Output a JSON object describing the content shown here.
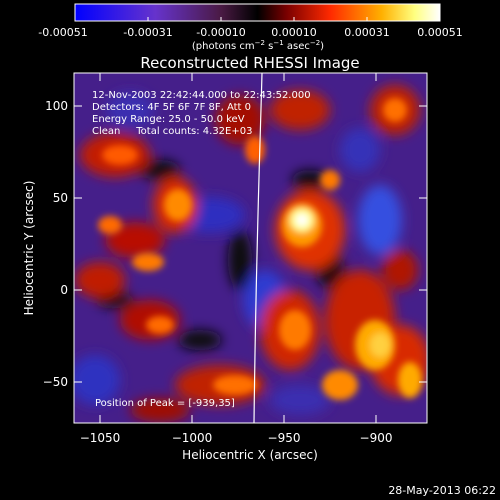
{
  "colorbar": {
    "ticks": [
      "-0.00051",
      "-0.00031",
      "-0.00010",
      "0.00010",
      "0.00031",
      "0.00051"
    ],
    "units_main": "(photons cm",
    "units_exp1": "−2",
    "units_mid": " s",
    "units_exp2": "−1",
    "units_tail": " asec",
    "units_exp3": "−2",
    "units_close": ")",
    "stops": [
      "#0000ff",
      "#6633cc",
      "#4a1a44",
      "#000000",
      "#7a0000",
      "#ff2a00",
      "#ffb000",
      "#ffff80",
      "#ffffff"
    ]
  },
  "title": "Reconstructed RHESSI Image",
  "info": {
    "line1": "12-Nov-2003 22:42:44.000 to 22:43:52.000",
    "line2": "Detectors: 4F 5F 6F 7F 8F, Att 0",
    "line3": "Energy Range: 25.0 - 50.0 keV",
    "line4": "Clean     Total counts: 4.32E+03",
    "peak": "Position of Peak = [-939,35]"
  },
  "axes": {
    "xlabel": "Heliocentric X (arcsec)",
    "ylabel": "Heliocentric Y (arcsec)",
    "xticks": [
      {
        "label": "−1050",
        "value": -1050
      },
      {
        "label": "−1000",
        "value": -1000
      },
      {
        "label": "−950",
        "value": -950
      },
      {
        "label": "−900",
        "value": -900
      }
    ],
    "yticks": [
      {
        "label": "100",
        "value": 100
      },
      {
        "label": "50",
        "value": 50
      },
      {
        "label": "0",
        "value": 0
      },
      {
        "label": "−50",
        "value": -50
      }
    ],
    "xlim": [
      -1066,
      -874
    ],
    "ylim": [
      -73,
      119
    ]
  },
  "timestamp": "28-May-2013 06:22",
  "image_map": {
    "background": "#451f8a",
    "peak_arcsec": [
      -939,
      35
    ],
    "limb_x_arcsec": -968
  }
}
